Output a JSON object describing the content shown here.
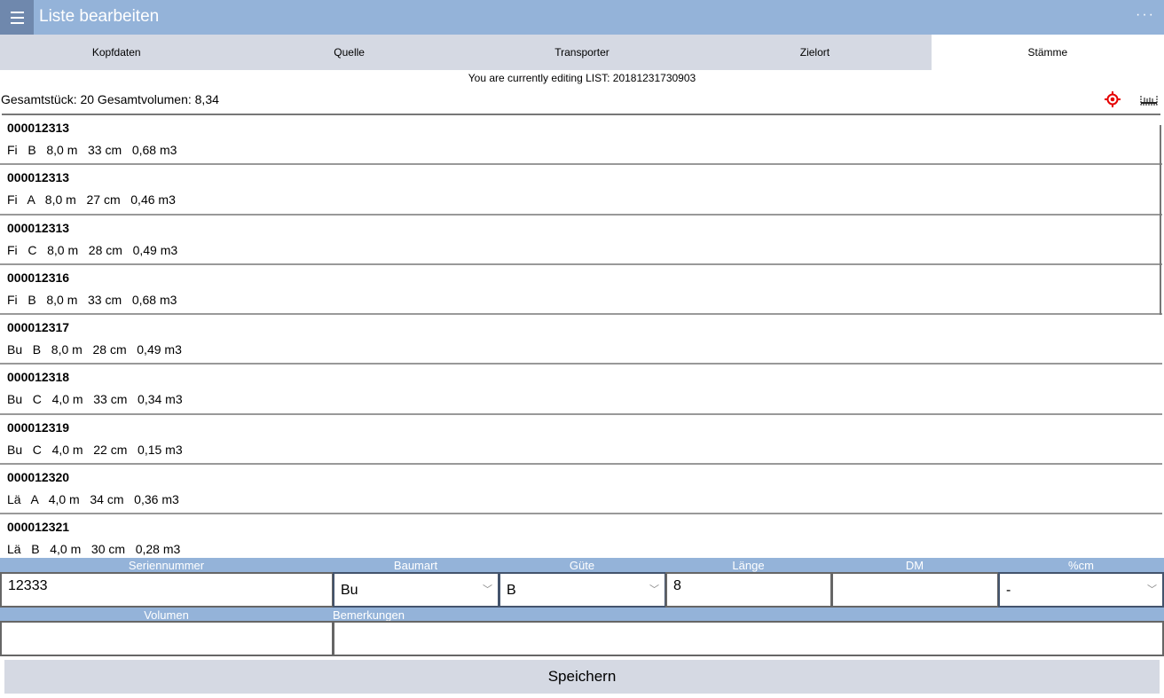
{
  "header": {
    "title": "Liste bearbeiten",
    "more": "···"
  },
  "tabs": [
    "Kopfdaten",
    "Quelle",
    "Transporter",
    "Zielort",
    "Stämme"
  ],
  "info": "You are currently editing LIST: 20181231730903",
  "summary": "Gesamtstück: 20 Gesamtvolumen: 8,34",
  "colors": {
    "accent": "#94b3d9",
    "tab_bg": "#d5d9e3",
    "target_icon": "#e60000"
  },
  "rows": [
    {
      "id": "000012313",
      "details": "Fi   B   8,0 m   33 cm   0,68 m3"
    },
    {
      "id": "000012313",
      "details": "Fi   A   8,0 m   27 cm   0,46 m3"
    },
    {
      "id": "000012313",
      "details": "Fi   C   8,0 m   28 cm   0,49 m3"
    },
    {
      "id": "000012316",
      "details": "Fi   B   8,0 m   33 cm   0,68 m3"
    },
    {
      "id": "000012317",
      "details": "Bu   B   8,0 m   28 cm   0,49 m3"
    },
    {
      "id": "000012318",
      "details": "Bu   C   4,0 m   33 cm   0,34 m3"
    },
    {
      "id": "000012319",
      "details": "Bu   C   4,0 m   22 cm   0,15 m3"
    },
    {
      "id": "000012320",
      "details": "Lä   A   4,0 m   34 cm   0,36 m3"
    },
    {
      "id": "000012321",
      "details": "Lä   B   4,0 m   30 cm   0,28 m3"
    }
  ],
  "form": {
    "labels": {
      "serial": "Seriennummer",
      "species": "Baumart",
      "quality": "Güte",
      "length": "Länge",
      "dm": "DM",
      "pcm": "%cm",
      "volume": "Volumen",
      "remarks": "Bemerkungen"
    },
    "values": {
      "serial": "12333",
      "species": "Bu",
      "quality": "B",
      "length": "8",
      "dm": "",
      "pcm": "-",
      "volume": "",
      "remarks": ""
    }
  },
  "save_label": "Speichern"
}
